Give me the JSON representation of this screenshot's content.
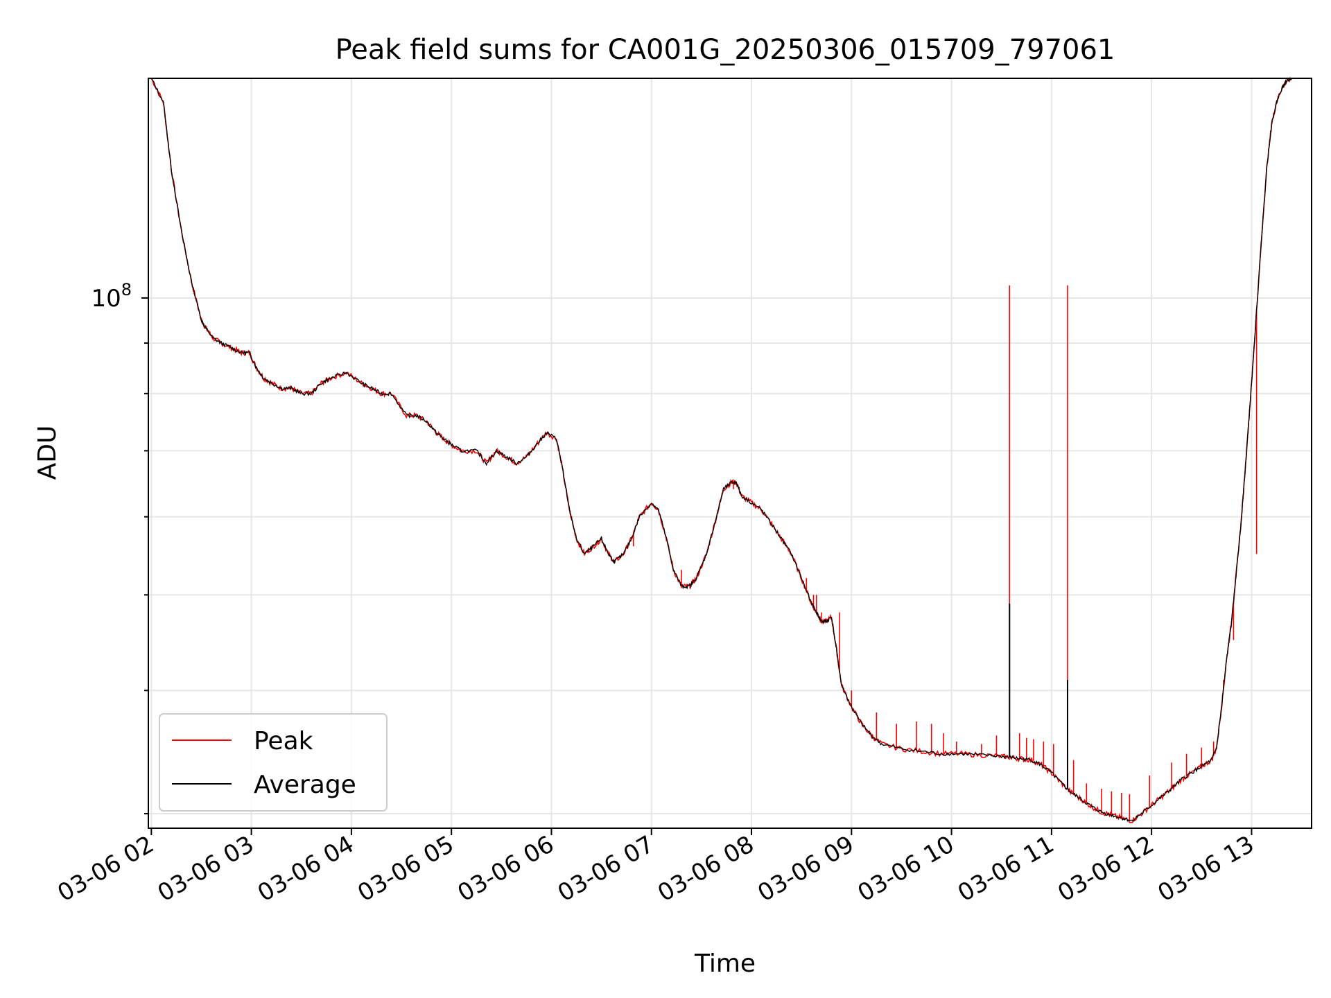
{
  "chart_data": {
    "type": "line",
    "title": "Peak field sums for CA001G_20250306_015709_797061",
    "xlabel": "Time",
    "ylabel": "ADU",
    "y_scale": "log",
    "y_major_tick": {
      "value": 100000000,
      "label_base": "10",
      "label_exp": "8"
    },
    "x_ticks": [
      "03-06 02",
      "03-06 03",
      "03-06 04",
      "03-06 05",
      "03-06 06",
      "03-06 07",
      "03-06 08",
      "03-06 09",
      "03-06 10",
      "03-06 11",
      "03-06 12",
      "03-06 13"
    ],
    "x_range_hours": [
      1.97,
      13.6
    ],
    "y_range": [
      29000000,
      167000000
    ],
    "grid": true,
    "legend_position": "lower-left",
    "series": [
      {
        "name": "Peak",
        "color": "#ff0000"
      },
      {
        "name": "Average",
        "color": "#000000"
      }
    ],
    "x_hours": [
      2.0,
      2.12,
      2.2,
      2.3,
      2.4,
      2.5,
      2.55,
      2.62,
      2.7,
      2.8,
      2.9,
      2.98,
      3.05,
      3.12,
      3.2,
      3.3,
      3.4,
      3.5,
      3.6,
      3.7,
      3.8,
      3.95,
      4.1,
      4.2,
      4.3,
      4.4,
      4.55,
      4.65,
      4.75,
      4.85,
      4.92,
      5.0,
      5.1,
      5.25,
      5.35,
      5.45,
      5.55,
      5.65,
      5.75,
      5.85,
      5.95,
      6.05,
      6.1,
      6.18,
      6.25,
      6.33,
      6.42,
      6.5,
      6.57,
      6.63,
      6.72,
      6.8,
      6.88,
      7.0,
      7.07,
      7.15,
      7.22,
      7.3,
      7.38,
      7.45,
      7.55,
      7.65,
      7.72,
      7.8,
      7.85,
      7.9,
      8.0,
      8.1,
      8.2,
      8.3,
      8.4,
      8.5,
      8.6,
      8.65,
      8.7,
      8.75,
      8.8,
      8.85,
      8.9,
      9.0,
      9.1,
      9.2,
      9.3,
      9.5,
      9.7,
      9.9,
      10.1,
      10.3,
      10.5,
      10.6,
      10.7,
      10.8,
      10.9,
      11.0,
      11.1,
      11.2,
      11.3,
      11.4,
      11.5,
      11.6,
      11.7,
      11.8,
      11.9,
      12.0,
      12.1,
      12.2,
      12.3,
      12.4,
      12.5,
      12.6,
      12.65,
      12.7,
      12.75,
      12.8,
      12.85,
      12.9,
      12.95,
      13.0,
      13.05,
      13.1,
      13.15,
      13.2,
      13.25,
      13.3,
      13.35,
      13.4
    ],
    "average": [
      167000000,
      158000000,
      135000000,
      117000000,
      104000000,
      95000000,
      93000000,
      91000000,
      90000000,
      89000000,
      88000000,
      88000000,
      85000000,
      83000000,
      82000000,
      81000000,
      81000000,
      80000000,
      80000000,
      82000000,
      83000000,
      84000000,
      82000000,
      81000000,
      80000000,
      80000000,
      76000000,
      76000000,
      75000000,
      73000000,
      72000000,
      71000000,
      70000000,
      70000000,
      68000000,
      70000000,
      69000000,
      68000000,
      69000000,
      71000000,
      73000000,
      72000000,
      68000000,
      61000000,
      57000000,
      55000000,
      56000000,
      57000000,
      55000000,
      54000000,
      55000000,
      57000000,
      60000000,
      62000000,
      61000000,
      57000000,
      53000000,
      51000000,
      51000000,
      52000000,
      55000000,
      60000000,
      64000000,
      65000000,
      65000000,
      63000000,
      62000000,
      61000000,
      59000000,
      57000000,
      55000000,
      52000000,
      49000000,
      48000000,
      47000000,
      47000000,
      47500000,
      44000000,
      40500000,
      38500000,
      37000000,
      36000000,
      35300000,
      34900000,
      34700000,
      34500000,
      34500000,
      34400000,
      34300000,
      34200000,
      34100000,
      34000000,
      33600000,
      33000000,
      32200000,
      31500000,
      31000000,
      30500000,
      30100000,
      29900000,
      29700000,
      29500000,
      30000000,
      30600000,
      31200000,
      31800000,
      32500000,
      33000000,
      33500000,
      34000000,
      35000000,
      38500000,
      43000000,
      47000000,
      53000000,
      60000000,
      70000000,
      82000000,
      97000000,
      115000000,
      135000000,
      150000000,
      158000000,
      163000000,
      166000000,
      167000000
    ],
    "peak_spikes": [
      [
        6.82,
        56000000
      ],
      [
        7.3,
        53000000
      ],
      [
        7.82,
        64000000
      ],
      [
        8.4,
        55000000
      ],
      [
        8.55,
        52000000
      ],
      [
        8.62,
        50000000
      ],
      [
        8.65,
        50000000
      ],
      [
        8.7,
        48000000
      ],
      [
        8.88,
        48000000
      ],
      [
        9.0,
        40000000
      ],
      [
        9.25,
        38000000
      ],
      [
        9.45,
        37000000
      ],
      [
        9.65,
        37200000
      ],
      [
        9.8,
        37000000
      ],
      [
        9.92,
        36200000
      ],
      [
        10.05,
        35500000
      ],
      [
        10.3,
        35300000
      ],
      [
        10.45,
        36000000
      ],
      [
        10.58,
        103000000
      ],
      [
        10.68,
        36200000
      ],
      [
        10.75,
        35800000
      ],
      [
        10.82,
        35700000
      ],
      [
        10.92,
        35500000
      ],
      [
        11.02,
        35300000
      ],
      [
        11.16,
        103000000
      ],
      [
        11.22,
        34000000
      ],
      [
        11.35,
        32200000
      ],
      [
        11.5,
        31800000
      ],
      [
        11.6,
        31600000
      ],
      [
        11.7,
        31500000
      ],
      [
        11.78,
        31400000
      ],
      [
        11.98,
        32800000
      ],
      [
        12.2,
        33800000
      ],
      [
        12.35,
        34500000
      ],
      [
        12.5,
        35000000
      ],
      [
        12.62,
        35500000
      ],
      [
        12.72,
        41000000
      ],
      [
        12.82,
        45000000
      ],
      [
        13.05,
        55000000
      ]
    ],
    "average_spikes": [
      [
        10.58,
        49000000
      ],
      [
        11.16,
        41000000
      ]
    ]
  }
}
